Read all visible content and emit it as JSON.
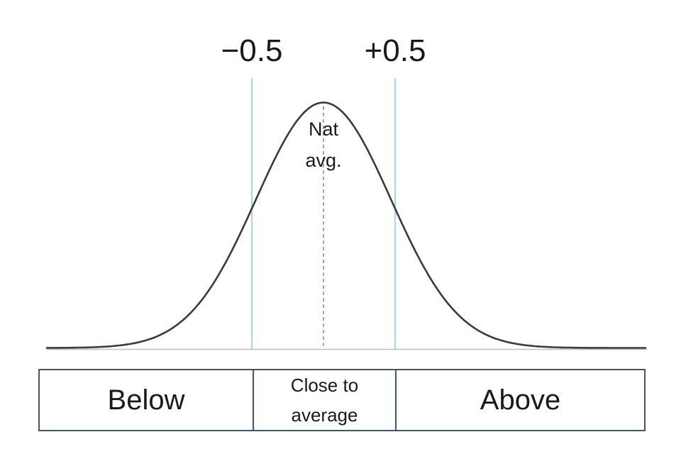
{
  "chart_data": {
    "type": "line",
    "curve": "normal-distribution",
    "title": "",
    "mean": 0,
    "sigma": 0.47,
    "x_ticks": [
      -0.5,
      0.5
    ],
    "thresholds": [
      {
        "x": -0.5,
        "label": "−0.5"
      },
      {
        "x": 0.5,
        "label": "+0.5"
      }
    ],
    "mean_line": {
      "x": 0,
      "style": "dashed",
      "label_lines": [
        "Nat",
        "avg."
      ]
    },
    "bands": [
      {
        "lines": [
          "Below"
        ]
      },
      {
        "lines": [
          "Close to",
          "average"
        ]
      },
      {
        "lines": [
          "Above"
        ]
      }
    ],
    "colors": {
      "curve": "#3b3b3b",
      "baseline": "#bfbfbf",
      "threshold_line": "#9dc3e6",
      "mean_line": "#808080",
      "band_border": "#44546a",
      "text": "#1a1a1a"
    }
  }
}
